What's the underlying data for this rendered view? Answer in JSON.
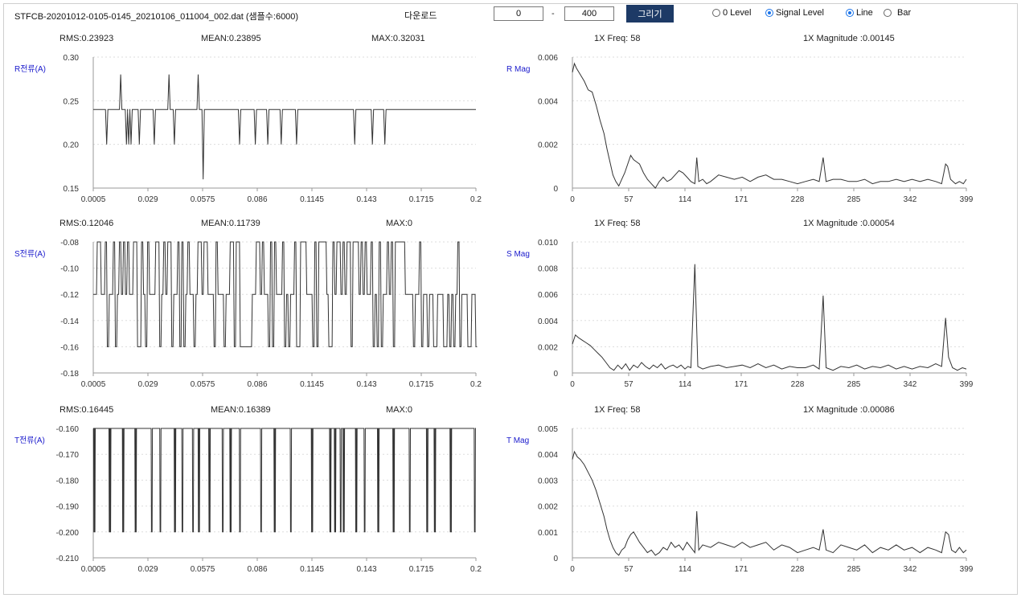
{
  "header": {
    "file_name": "STFCB-20201012-0105-0145_20210106_011004_002.dat (샘플수:6000)",
    "download_label": "다운로드",
    "range_start": "0",
    "range_separator": "-",
    "range_end": "400",
    "draw_button": "그리기",
    "radios": [
      {
        "label": "0 Level",
        "checked": false
      },
      {
        "label": "Signal Level",
        "checked": true
      },
      {
        "label": "Line",
        "checked": true
      },
      {
        "label": "Bar",
        "checked": false
      }
    ]
  },
  "colors": {
    "line": "#333333",
    "grid": "#dddddd",
    "axis": "#999999",
    "ylabel": "#1a1acc",
    "button": "#1d3a66"
  },
  "chart_data": [
    {
      "type": "line",
      "id": "r-current",
      "stats": [
        "RMS:0.23923",
        "MEAN:0.23895",
        "MAX:0.32031"
      ],
      "ylabel": "R전류(A)",
      "yticks": [
        "0.30",
        "0.25",
        "0.20",
        "0.15"
      ],
      "ylim": [
        0.15,
        0.3
      ],
      "xticks": [
        "0.0005",
        "0.029",
        "0.0575",
        "0.086",
        "0.1145",
        "0.143",
        "0.1715",
        "0.2"
      ],
      "xlim": [
        0.0005,
        0.2
      ],
      "baseline": 0.24,
      "spikes": [
        [
          0.0075,
          0.2
        ],
        [
          0.0148,
          0.28
        ],
        [
          0.0178,
          0.2
        ],
        [
          0.019,
          0.2
        ],
        [
          0.0202,
          0.2
        ],
        [
          0.0245,
          0.2
        ],
        [
          0.0323,
          0.2
        ],
        [
          0.04,
          0.28
        ],
        [
          0.0428,
          0.2
        ],
        [
          0.0552,
          0.28
        ],
        [
          0.0578,
          0.16
        ],
        [
          0.0768,
          0.2
        ],
        [
          0.085,
          0.2
        ],
        [
          0.0915,
          0.2
        ],
        [
          0.0985,
          0.2
        ],
        [
          0.1065,
          0.2
        ],
        [
          0.1368,
          0.2
        ],
        [
          0.146,
          0.2
        ],
        [
          0.1525,
          0.2
        ]
      ]
    },
    {
      "type": "line",
      "id": "r-mag",
      "stats": [
        "1X Freq: 58",
        "1X Magnitude :0.00145"
      ],
      "ylabel": "R Mag",
      "yticks": [
        "0.006",
        "0.004",
        "0.002",
        "0"
      ],
      "ylim": [
        0,
        0.006
      ],
      "xticks": [
        "0",
        "57",
        "114",
        "171",
        "228",
        "285",
        "342",
        "399"
      ],
      "xlim": [
        0,
        399
      ],
      "points": [
        [
          0,
          0.0053
        ],
        [
          2,
          0.0057
        ],
        [
          4,
          0.0055
        ],
        [
          8,
          0.0052
        ],
        [
          12,
          0.0049
        ],
        [
          16,
          0.0045
        ],
        [
          20,
          0.0044
        ],
        [
          24,
          0.0038
        ],
        [
          28,
          0.0031
        ],
        [
          32,
          0.0025
        ],
        [
          35,
          0.0018
        ],
        [
          38,
          0.0012
        ],
        [
          41,
          0.0006
        ],
        [
          44,
          0.0003
        ],
        [
          47,
          0.0001
        ],
        [
          50,
          0.0004
        ],
        [
          53,
          0.0007
        ],
        [
          56,
          0.0011
        ],
        [
          59,
          0.0015
        ],
        [
          62,
          0.0013
        ],
        [
          65,
          0.0012
        ],
        [
          68,
          0.0011
        ],
        [
          72,
          0.0007
        ],
        [
          76,
          0.0004
        ],
        [
          80,
          0.0002
        ],
        [
          84,
          0.0
        ],
        [
          88,
          0.0003
        ],
        [
          92,
          0.0005
        ],
        [
          96,
          0.0003
        ],
        [
          100,
          0.0004
        ],
        [
          104,
          0.0006
        ],
        [
          108,
          0.0008
        ],
        [
          112,
          0.0007
        ],
        [
          116,
          0.0005
        ],
        [
          120,
          0.0003
        ],
        [
          124,
          0.0002
        ],
        [
          126,
          0.0014
        ],
        [
          128,
          0.0003
        ],
        [
          132,
          0.0004
        ],
        [
          136,
          0.0002
        ],
        [
          140,
          0.0003
        ],
        [
          148,
          0.0006
        ],
        [
          156,
          0.0005
        ],
        [
          164,
          0.0004
        ],
        [
          172,
          0.0005
        ],
        [
          180,
          0.0003
        ],
        [
          188,
          0.0005
        ],
        [
          196,
          0.0006
        ],
        [
          204,
          0.0004
        ],
        [
          212,
          0.0004
        ],
        [
          220,
          0.0003
        ],
        [
          228,
          0.0002
        ],
        [
          236,
          0.0003
        ],
        [
          244,
          0.0004
        ],
        [
          250,
          0.0003
        ],
        [
          254,
          0.0014
        ],
        [
          257,
          0.0003
        ],
        [
          264,
          0.0004
        ],
        [
          272,
          0.0004
        ],
        [
          280,
          0.0003
        ],
        [
          288,
          0.0003
        ],
        [
          296,
          0.0004
        ],
        [
          304,
          0.0002
        ],
        [
          312,
          0.0003
        ],
        [
          320,
          0.0003
        ],
        [
          328,
          0.0004
        ],
        [
          336,
          0.0003
        ],
        [
          344,
          0.0004
        ],
        [
          352,
          0.0003
        ],
        [
          360,
          0.0004
        ],
        [
          368,
          0.0003
        ],
        [
          374,
          0.0002
        ],
        [
          378,
          0.0011
        ],
        [
          380,
          0.001
        ],
        [
          383,
          0.0004
        ],
        [
          388,
          0.0002
        ],
        [
          392,
          0.0003
        ],
        [
          396,
          0.0002
        ],
        [
          399,
          0.0004
        ]
      ]
    },
    {
      "type": "line",
      "id": "s-current",
      "stats": [
        "RMS:0.12046",
        "MEAN:0.11739",
        "MAX:0"
      ],
      "ylabel": "S전류(A)",
      "yticks": [
        "-0.08",
        "-0.10",
        "-0.12",
        "-0.14",
        "-0.16",
        "-0.18"
      ],
      "ylim": [
        -0.18,
        -0.08
      ],
      "xticks": [
        "0.0005",
        "0.029",
        "0.0575",
        "0.086",
        "0.1145",
        "0.143",
        "0.1715",
        "0.2"
      ],
      "xlim": [
        0.0005,
        0.2
      ],
      "levels": [
        -0.08,
        -0.12,
        -0.16
      ]
    },
    {
      "type": "line",
      "id": "s-mag",
      "stats": [
        "1X Freq: 58",
        "1X Magnitude :0.00054"
      ],
      "ylabel": "S Mag",
      "yticks": [
        "0.010",
        "0.008",
        "0.006",
        "0.004",
        "0.002",
        "0"
      ],
      "ylim": [
        0,
        0.01
      ],
      "xticks": [
        "0",
        "57",
        "114",
        "171",
        "228",
        "285",
        "342",
        "399"
      ],
      "xlim": [
        0,
        399
      ],
      "points": [
        [
          0,
          0.0022
        ],
        [
          3,
          0.0029
        ],
        [
          6,
          0.0027
        ],
        [
          10,
          0.0025
        ],
        [
          14,
          0.0023
        ],
        [
          18,
          0.0021
        ],
        [
          22,
          0.0018
        ],
        [
          26,
          0.0015
        ],
        [
          30,
          0.0012
        ],
        [
          34,
          0.0008
        ],
        [
          38,
          0.0004
        ],
        [
          42,
          0.0002
        ],
        [
          46,
          0.0006
        ],
        [
          50,
          0.0003
        ],
        [
          54,
          0.0007
        ],
        [
          58,
          0.0002
        ],
        [
          62,
          0.0006
        ],
        [
          66,
          0.0004
        ],
        [
          70,
          0.0008
        ],
        [
          74,
          0.0005
        ],
        [
          78,
          0.0003
        ],
        [
          82,
          0.0006
        ],
        [
          86,
          0.0004
        ],
        [
          90,
          0.0007
        ],
        [
          94,
          0.0003
        ],
        [
          98,
          0.0005
        ],
        [
          102,
          0.0006
        ],
        [
          106,
          0.0004
        ],
        [
          110,
          0.0006
        ],
        [
          114,
          0.0003
        ],
        [
          117,
          0.0005
        ],
        [
          120,
          0.0004
        ],
        [
          124,
          0.0083
        ],
        [
          127,
          0.0005
        ],
        [
          132,
          0.0003
        ],
        [
          140,
          0.0005
        ],
        [
          148,
          0.0006
        ],
        [
          156,
          0.0004
        ],
        [
          164,
          0.0005
        ],
        [
          172,
          0.0006
        ],
        [
          180,
          0.0004
        ],
        [
          188,
          0.0007
        ],
        [
          196,
          0.0004
        ],
        [
          204,
          0.0006
        ],
        [
          212,
          0.0003
        ],
        [
          220,
          0.0005
        ],
        [
          228,
          0.0004
        ],
        [
          236,
          0.0004
        ],
        [
          244,
          0.0006
        ],
        [
          250,
          0.0003
        ],
        [
          254,
          0.0059
        ],
        [
          257,
          0.0004
        ],
        [
          264,
          0.0002
        ],
        [
          272,
          0.0005
        ],
        [
          280,
          0.0004
        ],
        [
          288,
          0.0006
        ],
        [
          296,
          0.0003
        ],
        [
          304,
          0.0005
        ],
        [
          312,
          0.0004
        ],
        [
          320,
          0.0006
        ],
        [
          328,
          0.0003
        ],
        [
          336,
          0.0005
        ],
        [
          344,
          0.0003
        ],
        [
          352,
          0.0005
        ],
        [
          360,
          0.0004
        ],
        [
          368,
          0.0007
        ],
        [
          374,
          0.0005
        ],
        [
          378,
          0.0042
        ],
        [
          381,
          0.0012
        ],
        [
          385,
          0.0004
        ],
        [
          390,
          0.0002
        ],
        [
          395,
          0.0004
        ],
        [
          399,
          0.0003
        ]
      ]
    },
    {
      "type": "line",
      "id": "t-current",
      "stats": [
        "RMS:0.16445",
        "MEAN:0.16389",
        "MAX:0"
      ],
      "ylabel": "T전류(A)",
      "yticks": [
        "-0.160",
        "-0.170",
        "-0.180",
        "-0.190",
        "-0.200",
        "-0.210"
      ],
      "ylim": [
        -0.21,
        -0.16
      ],
      "xticks": [
        "0.0005",
        "0.029",
        "0.0575",
        "0.086",
        "0.1145",
        "0.143",
        "0.1715",
        "0.2"
      ],
      "xlim": [
        0.0005,
        0.2
      ],
      "baseline": -0.16,
      "dips": [
        0.001,
        0.0012,
        0.009,
        0.0092,
        0.0094,
        0.016,
        0.0162,
        0.0225,
        0.0227,
        0.031,
        0.0355,
        0.043,
        0.0432,
        0.047,
        0.0525,
        0.0555,
        0.0557,
        0.061,
        0.0612,
        0.068,
        0.072,
        0.0722,
        0.077,
        0.088,
        0.095,
        0.0952,
        0.1035,
        0.1145,
        0.1147,
        0.124,
        0.1242,
        0.1265,
        0.1267,
        0.1295,
        0.131,
        0.1312,
        0.1375,
        0.1377,
        0.142,
        0.149,
        0.1492,
        0.157,
        0.1572,
        0.1655,
        0.1745,
        0.1747,
        0.1785,
        0.1787,
        0.1868,
        0.187,
        0.1994
      ]
    },
    {
      "type": "line",
      "id": "t-mag",
      "stats": [
        "1X Freq: 58",
        "1X Magnitude :0.00086"
      ],
      "ylabel": "T Mag",
      "yticks": [
        "0.005",
        "0.004",
        "0.003",
        "0.002",
        "0.001",
        "0"
      ],
      "ylim": [
        0,
        0.005
      ],
      "xticks": [
        "0",
        "57",
        "114",
        "171",
        "228",
        "285",
        "342",
        "399"
      ],
      "xlim": [
        0,
        399
      ],
      "points": [
        [
          0,
          0.0038
        ],
        [
          2,
          0.0041
        ],
        [
          5,
          0.0039
        ],
        [
          8,
          0.0038
        ],
        [
          12,
          0.0036
        ],
        [
          16,
          0.0033
        ],
        [
          20,
          0.003
        ],
        [
          24,
          0.0026
        ],
        [
          28,
          0.0021
        ],
        [
          32,
          0.0016
        ],
        [
          35,
          0.0011
        ],
        [
          38,
          0.0007
        ],
        [
          41,
          0.0004
        ],
        [
          44,
          0.0002
        ],
        [
          47,
          0.0001
        ],
        [
          50,
          0.0003
        ],
        [
          53,
          0.0004
        ],
        [
          56,
          0.0007
        ],
        [
          59,
          0.0009
        ],
        [
          62,
          0.001
        ],
        [
          65,
          0.0008
        ],
        [
          68,
          0.0006
        ],
        [
          72,
          0.0004
        ],
        [
          76,
          0.0002
        ],
        [
          80,
          0.0003
        ],
        [
          84,
          0.0001
        ],
        [
          88,
          0.0002
        ],
        [
          92,
          0.0004
        ],
        [
          96,
          0.0003
        ],
        [
          100,
          0.0006
        ],
        [
          104,
          0.0004
        ],
        [
          108,
          0.0005
        ],
        [
          112,
          0.0003
        ],
        [
          116,
          0.0006
        ],
        [
          120,
          0.0004
        ],
        [
          124,
          0.0002
        ],
        [
          126,
          0.0018
        ],
        [
          128,
          0.0003
        ],
        [
          132,
          0.0005
        ],
        [
          140,
          0.0004
        ],
        [
          148,
          0.0006
        ],
        [
          156,
          0.0005
        ],
        [
          164,
          0.0004
        ],
        [
          172,
          0.0006
        ],
        [
          180,
          0.0004
        ],
        [
          188,
          0.0005
        ],
        [
          196,
          0.0006
        ],
        [
          204,
          0.0003
        ],
        [
          212,
          0.0005
        ],
        [
          220,
          0.0004
        ],
        [
          228,
          0.0002
        ],
        [
          236,
          0.0003
        ],
        [
          244,
          0.0004
        ],
        [
          250,
          0.0003
        ],
        [
          254,
          0.0011
        ],
        [
          257,
          0.0003
        ],
        [
          264,
          0.0002
        ],
        [
          272,
          0.0005
        ],
        [
          280,
          0.0004
        ],
        [
          288,
          0.0003
        ],
        [
          296,
          0.0005
        ],
        [
          304,
          0.0002
        ],
        [
          312,
          0.0004
        ],
        [
          320,
          0.0003
        ],
        [
          328,
          0.0005
        ],
        [
          336,
          0.0003
        ],
        [
          344,
          0.0004
        ],
        [
          352,
          0.0002
        ],
        [
          360,
          0.0004
        ],
        [
          368,
          0.0003
        ],
        [
          374,
          0.0002
        ],
        [
          378,
          0.001
        ],
        [
          381,
          0.0009
        ],
        [
          384,
          0.0003
        ],
        [
          388,
          0.0002
        ],
        [
          392,
          0.0004
        ],
        [
          396,
          0.0002
        ],
        [
          399,
          0.0003
        ]
      ]
    }
  ]
}
